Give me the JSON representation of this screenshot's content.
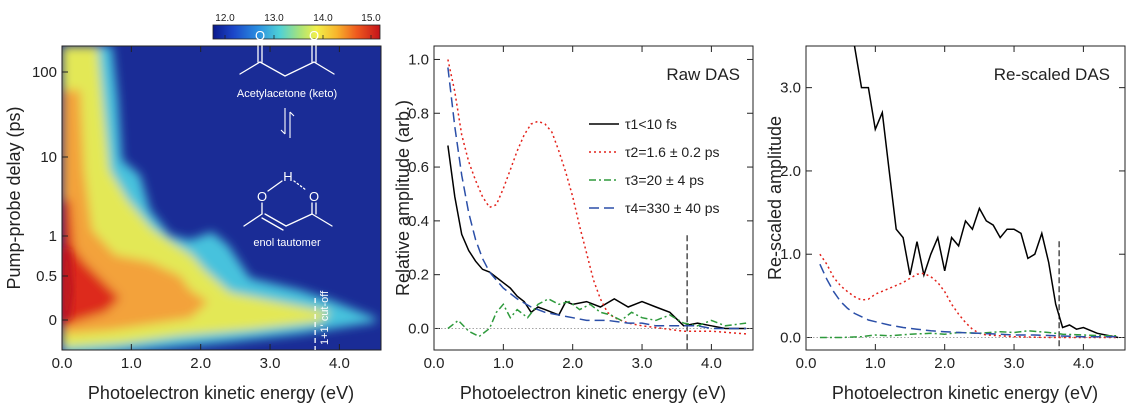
{
  "chart_data": [
    {
      "type": "heatmap",
      "xlabel": "Photoelectron kinetic energy (eV)",
      "ylabel": "Pump-probe delay (ps)",
      "xlim": [
        0,
        4.6
      ],
      "x_ticks": [
        "0.0",
        "1.0",
        "2.0",
        "3.0",
        "4.0"
      ],
      "y_ticks": [
        "0",
        "0.5",
        "1",
        "10",
        "100"
      ],
      "y_scale": "linear below 0.5 ps, logarithmic above",
      "colorbar": {
        "ticks": [
          "12.0",
          "13.0",
          "14.0",
          "15.0"
        ],
        "range": [
          12.0,
          15.5
        ]
      },
      "annotations": {
        "molecule_top": "Acetylacetone (keto)",
        "molecule_bottom": "enol tautomer",
        "cutoff": "1+1' cut-off",
        "cutoff_energy": 3.65
      },
      "signal_edge": {
        "delay": [
          -0.3,
          -0.1,
          0,
          0.2,
          0.5,
          0.7,
          1,
          2,
          3,
          5,
          10,
          20,
          50,
          100,
          200
        ],
        "max_energy": [
          0.5,
          3.7,
          3.8,
          3.5,
          2.4,
          2.3,
          2.2,
          2.0,
          1.9,
          1.6,
          1.5,
          1.2,
          0.9,
          0.8,
          0.7
        ]
      }
    },
    {
      "type": "line",
      "title": "Raw DAS",
      "xlabel": "Photoelectron kinetic energy (eV)",
      "ylabel": "Relative amplitude (arb.)",
      "xlim": [
        0,
        4.6
      ],
      "ylim": [
        -0.08,
        1.05
      ],
      "x_ticks": [
        "0.0",
        "1.0",
        "2.0",
        "3.0",
        "4.0"
      ],
      "y_ticks": [
        "0.0",
        "0.2",
        "0.4",
        "0.6",
        "0.8",
        "1.0"
      ],
      "cutoff_energy": 3.65,
      "series": [
        {
          "name": "τ1<10 fs",
          "color": "#000000",
          "style": "solid",
          "x": [
            0.2,
            0.3,
            0.4,
            0.5,
            0.6,
            0.7,
            0.8,
            0.9,
            1.0,
            1.1,
            1.2,
            1.3,
            1.4,
            1.5,
            1.6,
            1.7,
            1.8,
            1.9,
            2.0,
            2.2,
            2.4,
            2.6,
            2.8,
            3.0,
            3.2,
            3.4,
            3.6,
            3.8,
            4.0,
            4.2,
            4.5
          ],
          "y": [
            0.68,
            0.49,
            0.35,
            0.29,
            0.25,
            0.22,
            0.21,
            0.19,
            0.17,
            0.15,
            0.12,
            0.1,
            0.06,
            0.08,
            0.07,
            0.06,
            0.05,
            0.1,
            0.09,
            0.1,
            0.08,
            0.11,
            0.08,
            0.1,
            0.08,
            0.06,
            0.01,
            0.02,
            0.01,
            0.0,
            0.0
          ]
        },
        {
          "name": "τ2=1.6 ± 0.2 ps",
          "color": "#e3221b",
          "style": "dotted",
          "x": [
            0.2,
            0.3,
            0.4,
            0.5,
            0.6,
            0.7,
            0.8,
            0.9,
            1.0,
            1.1,
            1.2,
            1.3,
            1.4,
            1.5,
            1.6,
            1.7,
            1.8,
            1.9,
            2.0,
            2.1,
            2.2,
            2.3,
            2.4,
            2.5,
            2.6,
            2.7,
            2.8,
            3.0,
            3.3,
            3.6,
            4.0,
            4.5
          ],
          "y": [
            1.0,
            0.88,
            0.72,
            0.62,
            0.55,
            0.49,
            0.45,
            0.46,
            0.52,
            0.59,
            0.66,
            0.72,
            0.76,
            0.77,
            0.76,
            0.73,
            0.66,
            0.58,
            0.49,
            0.38,
            0.28,
            0.18,
            0.11,
            0.06,
            0.04,
            0.03,
            0.02,
            0.01,
            0.0,
            -0.01,
            -0.01,
            -0.02
          ]
        },
        {
          "name": "τ3=20 ± 4 ps",
          "color": "#2e9a3c",
          "style": "dashdot",
          "x": [
            0.2,
            0.35,
            0.5,
            0.65,
            0.8,
            0.9,
            1.0,
            1.1,
            1.2,
            1.35,
            1.5,
            1.65,
            1.8,
            1.95,
            2.1,
            2.25,
            2.4,
            2.55,
            2.7,
            2.85,
            3.0,
            3.2,
            3.4,
            3.6,
            3.8,
            4.0,
            4.2,
            4.5
          ],
          "y": [
            0.0,
            0.03,
            -0.01,
            -0.03,
            0.0,
            0.06,
            0.09,
            0.04,
            0.07,
            0.04,
            0.09,
            0.11,
            0.09,
            0.1,
            0.07,
            0.09,
            0.06,
            0.05,
            0.03,
            0.06,
            0.04,
            0.03,
            0.05,
            0.02,
            0.01,
            0.03,
            0.01,
            0.02
          ]
        },
        {
          "name": "τ4=330 ± 40 ps",
          "color": "#2b4fa8",
          "style": "dashed",
          "x": [
            0.2,
            0.3,
            0.4,
            0.5,
            0.6,
            0.7,
            0.8,
            0.9,
            1.0,
            1.2,
            1.4,
            1.6,
            1.8,
            2.0,
            2.2,
            2.5,
            2.8,
            3.0,
            3.2,
            3.4,
            3.6,
            3.8,
            4.0,
            4.5
          ],
          "y": [
            0.97,
            0.75,
            0.57,
            0.43,
            0.33,
            0.26,
            0.21,
            0.18,
            0.15,
            0.11,
            0.08,
            0.06,
            0.05,
            0.04,
            0.03,
            0.03,
            0.02,
            0.02,
            0.01,
            0.01,
            0.01,
            0.01,
            0.0,
            0.0
          ]
        }
      ]
    },
    {
      "type": "line",
      "title": "Re-scaled DAS",
      "xlabel": "Photoelectron kinetic energy (eV)",
      "ylabel": "Re-scaled amplitude",
      "xlim": [
        0,
        4.6
      ],
      "ylim": [
        -0.15,
        3.5
      ],
      "x_ticks": [
        "0.0",
        "1.0",
        "2.0",
        "3.0",
        "4.0"
      ],
      "y_ticks": [
        "0.0",
        "1.0",
        "2.0",
        "3.0"
      ],
      "cutoff_energy": 3.65,
      "series": [
        {
          "name": "τ1<10 fs",
          "color": "#000000",
          "style": "solid",
          "x": [
            0.7,
            0.8,
            0.9,
            1.0,
            1.1,
            1.2,
            1.3,
            1.4,
            1.5,
            1.6,
            1.7,
            1.8,
            1.9,
            2.0,
            2.1,
            2.2,
            2.3,
            2.4,
            2.5,
            2.6,
            2.7,
            2.8,
            2.9,
            3.0,
            3.1,
            3.2,
            3.3,
            3.4,
            3.5,
            3.6,
            3.7,
            3.8,
            3.9,
            4.0,
            4.2,
            4.5
          ],
          "y": [
            3.5,
            3.0,
            3.0,
            2.5,
            2.7,
            2.0,
            1.3,
            1.2,
            0.75,
            1.15,
            0.75,
            1.0,
            1.2,
            0.8,
            1.2,
            1.1,
            1.4,
            1.3,
            1.55,
            1.4,
            1.35,
            1.2,
            1.3,
            1.3,
            1.25,
            0.95,
            1.0,
            1.25,
            0.9,
            0.4,
            0.12,
            0.15,
            0.1,
            0.12,
            0.05,
            0.0
          ]
        },
        {
          "name": "τ2=1.6 ± 0.2 ps",
          "color": "#e3221b",
          "style": "dotted",
          "x": [
            0.2,
            0.3,
            0.4,
            0.5,
            0.6,
            0.7,
            0.8,
            0.9,
            1.0,
            1.2,
            1.4,
            1.6,
            1.7,
            1.8,
            1.9,
            2.0,
            2.1,
            2.2,
            2.3,
            2.4,
            2.5,
            2.6,
            2.8,
            3.0,
            3.5,
            4.0,
            4.5
          ],
          "y": [
            1.0,
            0.88,
            0.72,
            0.62,
            0.55,
            0.49,
            0.45,
            0.46,
            0.52,
            0.59,
            0.66,
            0.76,
            0.77,
            0.73,
            0.66,
            0.55,
            0.4,
            0.28,
            0.18,
            0.1,
            0.05,
            0.03,
            0.02,
            0.01,
            0.0,
            0.0,
            0.0
          ]
        },
        {
          "name": "τ3=20 ± 4 ps",
          "color": "#2e9a3c",
          "style": "dashdot",
          "x": [
            0.2,
            0.5,
            0.8,
            1.0,
            1.2,
            1.5,
            1.8,
            2.0,
            2.2,
            2.5,
            2.8,
            3.0,
            3.2,
            3.5,
            3.7,
            4.0,
            4.3,
            4.5
          ],
          "y": [
            0.0,
            0.0,
            0.01,
            0.03,
            0.02,
            0.04,
            0.05,
            0.04,
            0.06,
            0.05,
            0.07,
            0.06,
            0.08,
            0.06,
            0.04,
            0.03,
            0.02,
            0.02
          ]
        },
        {
          "name": "τ4=330 ± 40 ps",
          "color": "#2b4fa8",
          "style": "dashed",
          "x": [
            0.2,
            0.3,
            0.4,
            0.5,
            0.6,
            0.7,
            0.8,
            0.9,
            1.0,
            1.2,
            1.4,
            1.6,
            1.8,
            2.0,
            2.2,
            2.5,
            2.8,
            3.0,
            3.3,
            3.6,
            4.0,
            4.5
          ],
          "y": [
            0.88,
            0.7,
            0.55,
            0.43,
            0.35,
            0.29,
            0.25,
            0.21,
            0.19,
            0.15,
            0.12,
            0.1,
            0.08,
            0.07,
            0.06,
            0.05,
            0.04,
            0.03,
            0.03,
            0.02,
            0.01,
            0.01
          ]
        }
      ]
    }
  ]
}
